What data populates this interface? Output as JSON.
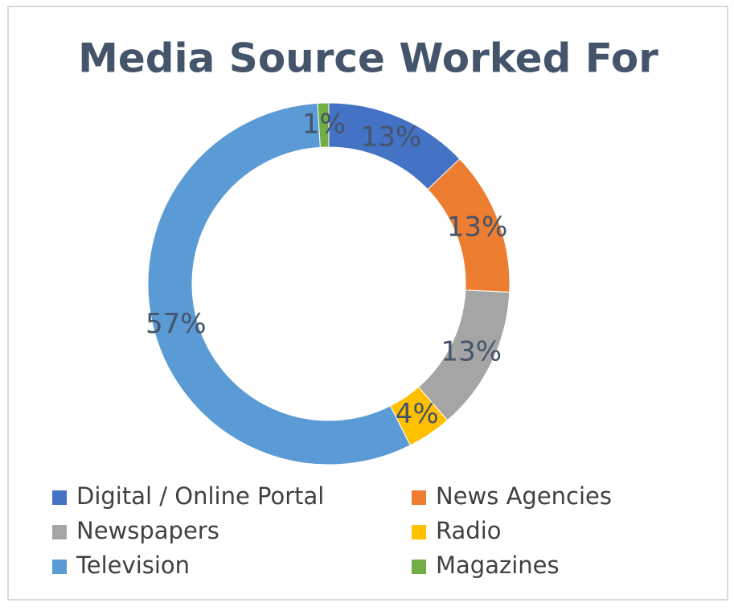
{
  "chart_data": {
    "type": "donut",
    "title": "Media Source Worked For",
    "categories": [
      "Digital / Online Portal",
      "News Agencies",
      "Newspapers",
      "Radio",
      "Television",
      "Magazines"
    ],
    "values": [
      13,
      13,
      13,
      4,
      57,
      1
    ],
    "value_labels": [
      "13%",
      "13%",
      "13%",
      "4%",
      "57%",
      "1%"
    ],
    "colors": [
      "#4472c4",
      "#ed7d31",
      "#a5a5a5",
      "#ffc000",
      "#5b9bd5",
      "#70ad47"
    ]
  }
}
